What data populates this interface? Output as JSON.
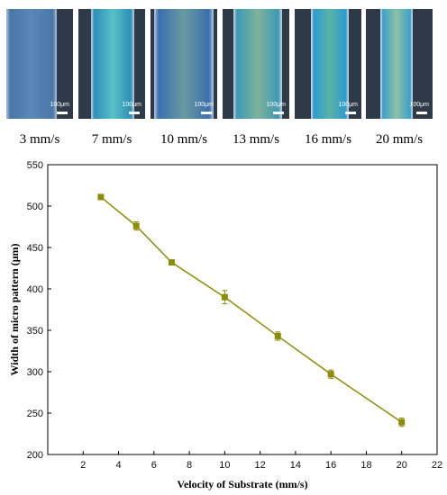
{
  "micrographs": [
    {
      "label": "3 mm/s",
      "scale_bar": "100μm",
      "colors": {
        "bg": "#2f3a49",
        "line": "#4a76a8",
        "center": "#5a88b8",
        "edge": "#9fb6d2"
      }
    },
    {
      "label": "7 mm/s",
      "scale_bar": "100μm",
      "colors": {
        "bg": "#2f3a49",
        "line": "#2f8fb8",
        "center": "#58c0c8",
        "edge": "#a9c6d8"
      }
    },
    {
      "label": "10 mm/s",
      "scale_bar": "100μm",
      "colors": {
        "bg": "#2f3a49",
        "line": "#3c6fae",
        "center": "#6a9aa0",
        "edge": "#a7bfd4"
      }
    },
    {
      "label": "13 mm/s",
      "scale_bar": "100μm",
      "colors": {
        "bg": "#2f3a49",
        "line": "#3f98b4",
        "center": "#7fb39a",
        "edge": "#b3cbd8"
      }
    },
    {
      "label": "16 mm/s",
      "scale_bar": "100μm",
      "colors": {
        "bg": "#2f3a49",
        "line": "#2e9ad0",
        "center": "#59b3a6",
        "edge": "#b8cfde"
      }
    },
    {
      "label": "20 mm/s",
      "scale_bar": "100μm",
      "colors": {
        "bg": "#2f3a49",
        "line": "#3fa0cc",
        "center": "#8cc0a4",
        "edge": "#b8cfde"
      }
    }
  ],
  "chart_data": {
    "type": "line",
    "xlabel": "Velocity of Substrate (mm/s)",
    "ylabel": "Width of micro pattern (μm)",
    "xlim": [
      0,
      22
    ],
    "ylim": [
      200,
      550
    ],
    "xticks": [
      2,
      4,
      6,
      8,
      10,
      12,
      14,
      16,
      18,
      20,
      22
    ],
    "yticks": [
      200,
      250,
      300,
      350,
      400,
      450,
      500,
      550
    ],
    "grid": false,
    "color": "#8c8c0a",
    "series": [
      {
        "x": [
          3,
          5,
          7,
          10,
          13,
          16,
          20
        ],
        "y": [
          511,
          476,
          432,
          390,
          343,
          297,
          239
        ],
        "err": [
          3,
          5,
          2,
          8,
          5,
          5,
          5
        ]
      }
    ]
  }
}
